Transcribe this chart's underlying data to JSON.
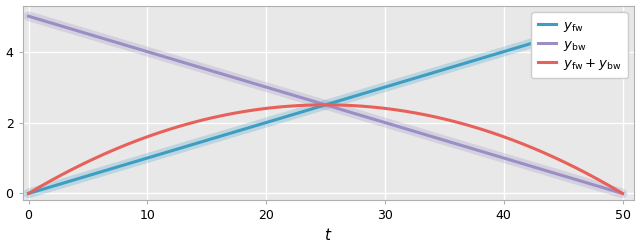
{
  "t_start": 0,
  "t_end": 50,
  "n_points": 500,
  "y_fw_scale": 0.1,
  "y_bw_scale": 0.1,
  "y_sum_scale": 0.004,
  "color_fw": "#3d9dc3",
  "color_bw": "#9b8ec4",
  "color_sum": "#e8605a",
  "alpha_ghost": 0.25,
  "lw_main": 2.2,
  "lw_ghost": 7,
  "xlabel": "$t$",
  "legend_fw": "$y_{\\mathrm{fw}}$",
  "legend_bw": "$y_{\\mathrm{bw}}$",
  "legend_sum": "$y_{\\mathrm{fw}} + y_{\\mathrm{bw}}$",
  "xlim": [
    -0.5,
    51
  ],
  "ylim": [
    -0.18,
    5.3
  ],
  "yticks": [
    0,
    2,
    4
  ],
  "xticks": [
    0,
    10,
    20,
    30,
    40,
    50
  ],
  "bg_color": "#e8e8e8",
  "fig_color": "#ffffff",
  "grid_color": "#ffffff",
  "grid_lw": 1.0,
  "figsize": [
    6.4,
    2.49
  ],
  "dpi": 100
}
